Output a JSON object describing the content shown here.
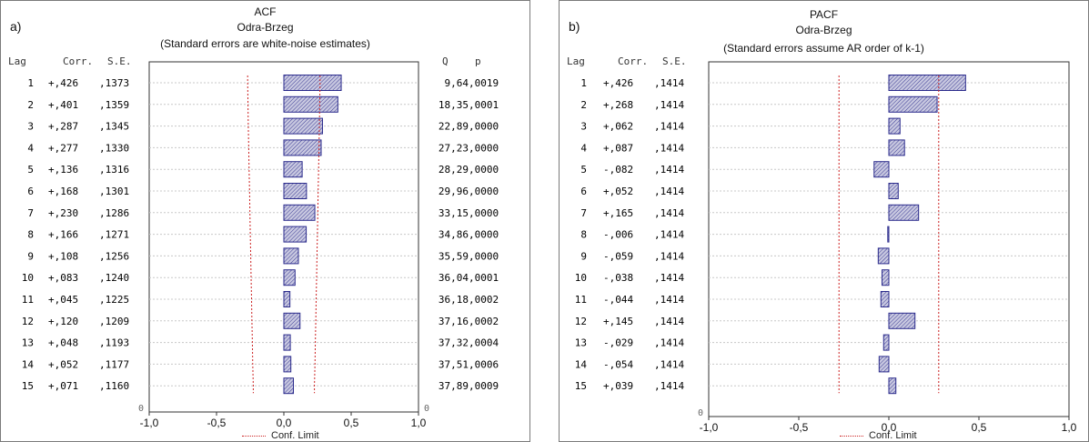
{
  "chart_data": [
    {
      "panel_label": "a)",
      "title": "ACF",
      "subtitle": "Odra-Brzeg",
      "note": "(Standard errors are white-noise estimates)",
      "type": "bar",
      "orientation": "horizontal",
      "col_headers": {
        "lag": "Lag",
        "corr": "Corr.",
        "se": "S.E.",
        "q": "Q",
        "p": "p"
      },
      "lags": [
        "1",
        "2",
        "3",
        "4",
        "5",
        "6",
        "7",
        "8",
        "9",
        "10",
        "11",
        "12",
        "13",
        "14",
        "15"
      ],
      "corr_labels": [
        "+,426",
        "+,401",
        "+,287",
        "+,277",
        "+,136",
        "+,168",
        "+,230",
        "+,166",
        "+,108",
        "+,083",
        "+,045",
        "+,120",
        "+,048",
        "+,052",
        "+,071"
      ],
      "se_labels": [
        ",1373",
        ",1359",
        ",1345",
        ",1330",
        ",1316",
        ",1301",
        ",1286",
        ",1271",
        ",1256",
        ",1240",
        ",1225",
        ",1209",
        ",1193",
        ",1177",
        ",1160"
      ],
      "q_labels": [
        "9,64",
        "18,35",
        "22,89",
        "27,23",
        "28,29",
        "29,96",
        "33,15",
        "34,86",
        "35,59",
        "36,04",
        "36,18",
        "37,16",
        "37,32",
        "37,51",
        "37,89"
      ],
      "p_labels": [
        ",0019",
        ",0001",
        ",0000",
        ",0000",
        ",0000",
        ",0000",
        ",0000",
        ",0000",
        ",0000",
        ",0001",
        ",0002",
        ",0002",
        ",0004",
        ",0006",
        ",0009"
      ],
      "values": [
        0.426,
        0.401,
        0.287,
        0.277,
        0.136,
        0.168,
        0.23,
        0.166,
        0.108,
        0.083,
        0.045,
        0.12,
        0.048,
        0.052,
        0.071
      ],
      "conf_limit": [
        0.269,
        0.266,
        0.264,
        0.261,
        0.258,
        0.255,
        0.252,
        0.249,
        0.246,
        0.243,
        0.24,
        0.237,
        0.234,
        0.231,
        0.227
      ],
      "xlim": [
        -1.0,
        1.0
      ],
      "x_ticks": [
        "-1,0",
        "-0,5",
        "0,0",
        "0,5",
        "1,0"
      ],
      "x_tick_values": [
        -1.0,
        -0.5,
        0.0,
        0.5,
        1.0
      ],
      "zero_left": "0",
      "zero_right": "0",
      "legend": "Conf. Limit",
      "colors": {
        "bar_fill": "#c8c8e0",
        "bar_stroke": "#2b2b8c",
        "conf": "#cc2222",
        "grid": "#c8c8c8"
      }
    },
    {
      "panel_label": "b)",
      "title": "PACF",
      "subtitle": "Odra-Brzeg",
      "note": "(Standard errors assume AR order of k-1)",
      "type": "bar",
      "orientation": "horizontal",
      "col_headers": {
        "lag": "Lag",
        "corr": "Corr.",
        "se": "S.E."
      },
      "lags": [
        "1",
        "2",
        "3",
        "4",
        "5",
        "6",
        "7",
        "8",
        "9",
        "10",
        "11",
        "12",
        "13",
        "14",
        "15"
      ],
      "corr_labels": [
        "+,426",
        "+,268",
        "+,062",
        "+,087",
        "-,082",
        "+,052",
        "+,165",
        "-,006",
        "-,059",
        "-,038",
        "-,044",
        "+,145",
        "-,029",
        "-,054",
        "+,039"
      ],
      "se_labels": [
        ",1414",
        ",1414",
        ",1414",
        ",1414",
        ",1414",
        ",1414",
        ",1414",
        ",1414",
        ",1414",
        ",1414",
        ",1414",
        ",1414",
        ",1414",
        ",1414",
        ",1414"
      ],
      "values": [
        0.426,
        0.268,
        0.062,
        0.087,
        -0.082,
        0.052,
        0.165,
        -0.006,
        -0.059,
        -0.038,
        -0.044,
        0.145,
        -0.029,
        -0.054,
        0.039
      ],
      "conf_limit": [
        0.277
      ],
      "xlim": [
        -1.0,
        1.0
      ],
      "x_ticks": [
        "-1,0",
        "-0,5",
        "0,0",
        "0,5",
        "1,0"
      ],
      "x_tick_values": [
        -1.0,
        -0.5,
        0.0,
        0.5,
        1.0
      ],
      "zero_left": "0",
      "legend": "Conf. Limit",
      "colors": {
        "bar_fill": "#c8c8e0",
        "bar_stroke": "#2b2b8c",
        "conf": "#cc2222",
        "grid": "#c8c8c8"
      }
    }
  ]
}
